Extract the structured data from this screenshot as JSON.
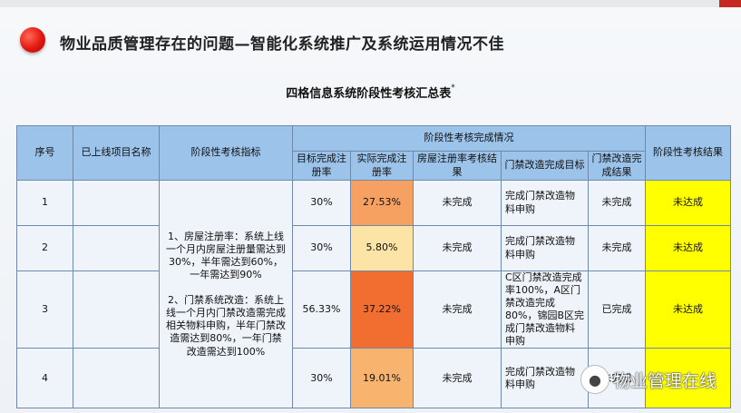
{
  "page_title": "物业品质管理存在的问题—智能化系统推广及系统运用情况不佳",
  "table_title": "四格信息系统阶段性考核汇总表",
  "table_title_mark": "*",
  "headers": {
    "seq": "序号",
    "project": "已上线项目名称",
    "indicator": "阶段性考核指标",
    "group": "阶段性考核完成情况",
    "target_rate": "目标完成注册率",
    "actual_rate": "实际完成注册率",
    "housing_result": "房屋注册率考核结果",
    "access_target": "门禁改造完成目标",
    "access_result": "门禁改造完成结果",
    "final": "阶段性考核结果"
  },
  "indicator_text": "1、房屋注册率：系统上线一个月内房屋注册量需达到30%，半年需达到60%，一年需达到90%\n\n2、门禁系统改造：系统上线一个月内门禁改造需完成相关物料申购，半年门禁改造需达到80%，一年门禁改造需达到100%",
  "rows": [
    {
      "seq": "1",
      "project": "",
      "target": "30%",
      "actual": "27.53%",
      "housing": "未完成",
      "access_target": "完成门禁改造物料申购",
      "access_result": "未完成",
      "final": "未达成"
    },
    {
      "seq": "2",
      "project": "",
      "target": "30%",
      "actual": "5.80%",
      "housing": "未完成",
      "access_target": "完成门禁改造物料申购",
      "access_result": "未完成",
      "final": "未达成"
    },
    {
      "seq": "3",
      "project": "",
      "target": "56.33%",
      "actual": "37.22%",
      "housing": "未完成",
      "access_target": "C区门禁改造完成率100%，A区门禁改造完成80%，锦园B区完成门禁改造物料申购",
      "access_result": "已完成",
      "final": "未达成"
    },
    {
      "seq": "4",
      "project": "",
      "target": "30%",
      "actual": "19.01%",
      "housing": "未完成",
      "access_target": "完成门禁改造物料申购",
      "access_result": "未完成",
      "final": ""
    }
  ],
  "watermark": "物业管理在线",
  "colors": {
    "header": "#9cc3ea",
    "cell": "#eef4fa",
    "actual_1": "#f6a162",
    "actual_2": "#fbe4a5",
    "actual_3": "#f26d30",
    "actual_4": "#f8b36e",
    "final": "#ffff00"
  },
  "icons": [
    "red-dot-bullet-icon",
    "wechat-icon"
  ]
}
